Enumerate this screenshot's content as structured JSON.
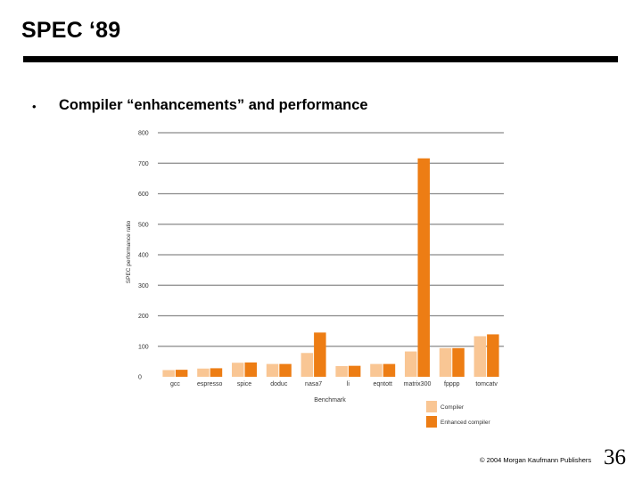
{
  "slide": {
    "title": "SPEC ‘89",
    "bullet": "•",
    "bullet_text": "Compiler “enhancements” and performance",
    "copyright": "© 2004 Morgan Kaufmann Publishers",
    "page_number": "36"
  },
  "colors": {
    "compiler": "#f9c694",
    "enhanced": "#ed7d14",
    "grid": "#8a8a8a"
  },
  "chart_data": {
    "type": "bar",
    "title": "",
    "xlabel": "Benchmark",
    "ylabel": "SPEC performance ratio",
    "ylim": [
      0,
      800
    ],
    "yticks": [
      "0",
      "100",
      "200",
      "300",
      "400",
      "500",
      "600",
      "700",
      "800"
    ],
    "grid": true,
    "legend_position": "bottom-right",
    "categories": [
      "gcc",
      "espresso",
      "spice",
      "doduc",
      "nasa7",
      "li",
      "eqntott",
      "matrix300",
      "fpppp",
      "tomcatv"
    ],
    "series": [
      {
        "name": "Compiler",
        "values": [
          22,
          27,
          46,
          42,
          78,
          35,
          42,
          83,
          94,
          133
        ]
      },
      {
        "name": "Enhanced compiler",
        "values": [
          23,
          28,
          47,
          42,
          145,
          36,
          42,
          716,
          94,
          139
        ]
      }
    ]
  }
}
